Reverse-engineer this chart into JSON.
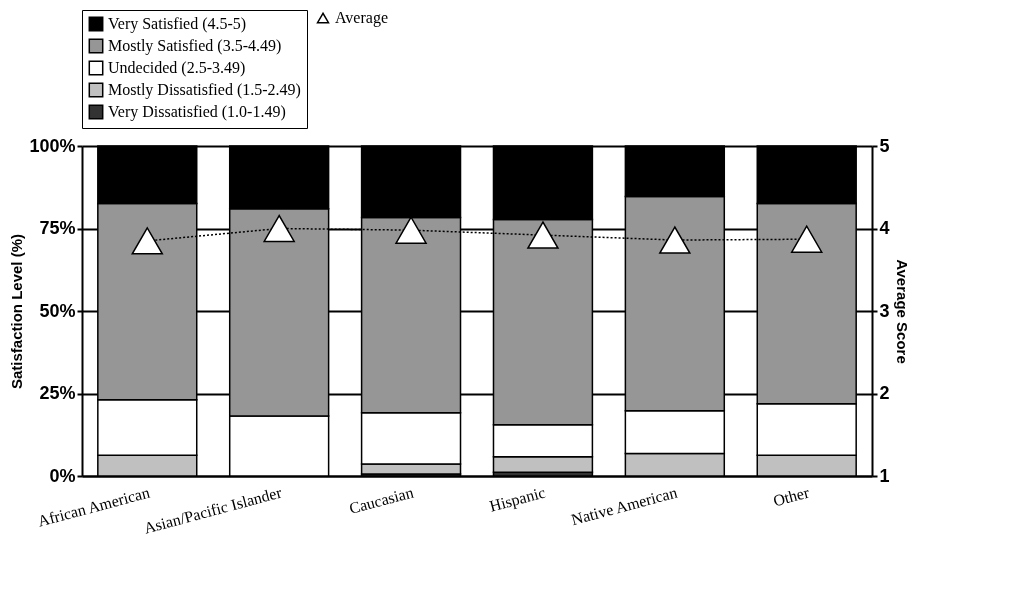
{
  "chart_data": {
    "type": "bar",
    "stacked": true,
    "categories": [
      "African American",
      "Asian/Pacific Islander",
      "Caucasian",
      "Hispanic",
      "Native American",
      "Other"
    ],
    "series": [
      {
        "name": "Very Dissatisfied (1.0-1.49)",
        "color": "#333333",
        "values": [
          0,
          0,
          0.6,
          1.1,
          0,
          0
        ]
      },
      {
        "name": "Mostly Dissatisfied (1.5-2.49)",
        "color": "#c0c0c0",
        "values": [
          6.3,
          0,
          3.0,
          4.7,
          6.8,
          6.3
        ]
      },
      {
        "name": "Undecided (2.5-3.49)",
        "color": "#ffffff",
        "values": [
          16.8,
          18.2,
          15.6,
          9.7,
          13.0,
          15.6
        ]
      },
      {
        "name": "Mostly Satisfied (3.5-4.49)",
        "color": "#969696",
        "values": [
          59.5,
          62.8,
          59.1,
          62.2,
          64.9,
          60.7
        ]
      },
      {
        "name": "Very Satisfied (4.5-5)",
        "color": "#000000",
        "values": [
          17.4,
          19.0,
          21.7,
          22.3,
          15.3,
          17.4
        ]
      },
      {
        "name": "Average",
        "type": "line",
        "axis": "y2",
        "color": "#000000",
        "marker": "triangle",
        "line_style": "dotted",
        "values": [
          3.85,
          4.0,
          3.98,
          3.92,
          3.86,
          3.87
        ]
      }
    ],
    "ylabel": "Satisfaction Level (%)",
    "y2label": "Average Score",
    "ylim": [
      0,
      100
    ],
    "yticks": [
      {
        "value": 0,
        "label": "0%"
      },
      {
        "value": 25,
        "label": "25%"
      },
      {
        "value": 50,
        "label": "50%"
      },
      {
        "value": 75,
        "label": "75%"
      },
      {
        "value": 100,
        "label": "100%"
      }
    ],
    "y2lim": [
      1,
      5
    ],
    "y2ticks": [
      1,
      2,
      3,
      4,
      5
    ],
    "grid": "y",
    "legend": "top"
  }
}
